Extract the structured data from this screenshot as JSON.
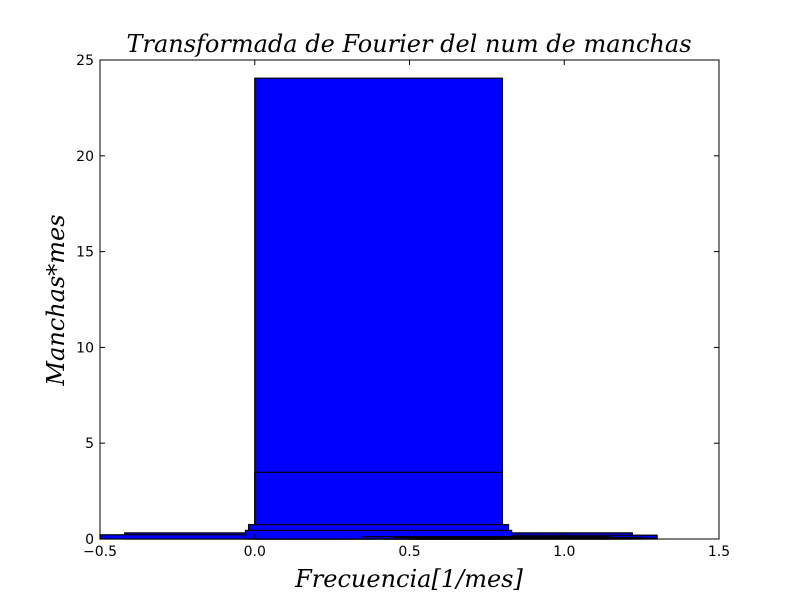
{
  "chart_data": {
    "type": "bar",
    "title": "Transformada de Fourier del num de manchas",
    "xlabel": "Frecuencia[1/mes]",
    "ylabel": "Manchas*mes",
    "xlim": [
      -0.5,
      1.5
    ],
    "ylim": [
      0,
      25
    ],
    "xticks": [
      -0.5,
      0.0,
      0.5,
      1.0,
      1.5
    ],
    "xtick_labels": [
      "−0.5",
      "0.0",
      "0.5",
      "1.0",
      "1.5"
    ],
    "yticks": [
      0,
      5,
      10,
      15,
      20,
      25
    ],
    "ytick_labels": [
      "0",
      "5",
      "10",
      "15",
      "20",
      "25"
    ],
    "grid": false,
    "bar_color": "#0000ff",
    "edge_color": "#000000",
    "bars": [
      {
        "x": 0.0,
        "width": 0.8,
        "height": 24.05
      },
      {
        "x": 0.0,
        "width": 0.8,
        "height": 3.48
      },
      {
        "x": -0.42,
        "width": 0.8,
        "height": 0.32
      },
      {
        "x": 0.42,
        "width": 0.8,
        "height": 0.32
      },
      {
        "x": -0.5,
        "width": 0.8,
        "height": 0.22
      },
      {
        "x": 0.5,
        "width": 0.8,
        "height": 0.2
      },
      {
        "x": -0.02,
        "width": 0.84,
        "height": 0.75
      },
      {
        "x": -0.03,
        "width": 0.86,
        "height": 0.45
      },
      {
        "x": 0.35,
        "width": 0.8,
        "height": 0.12
      },
      {
        "x": 0.45,
        "width": 0.8,
        "height": 0.08
      },
      {
        "x": 0.5,
        "width": 0.8,
        "height": 0.04
      }
    ]
  }
}
